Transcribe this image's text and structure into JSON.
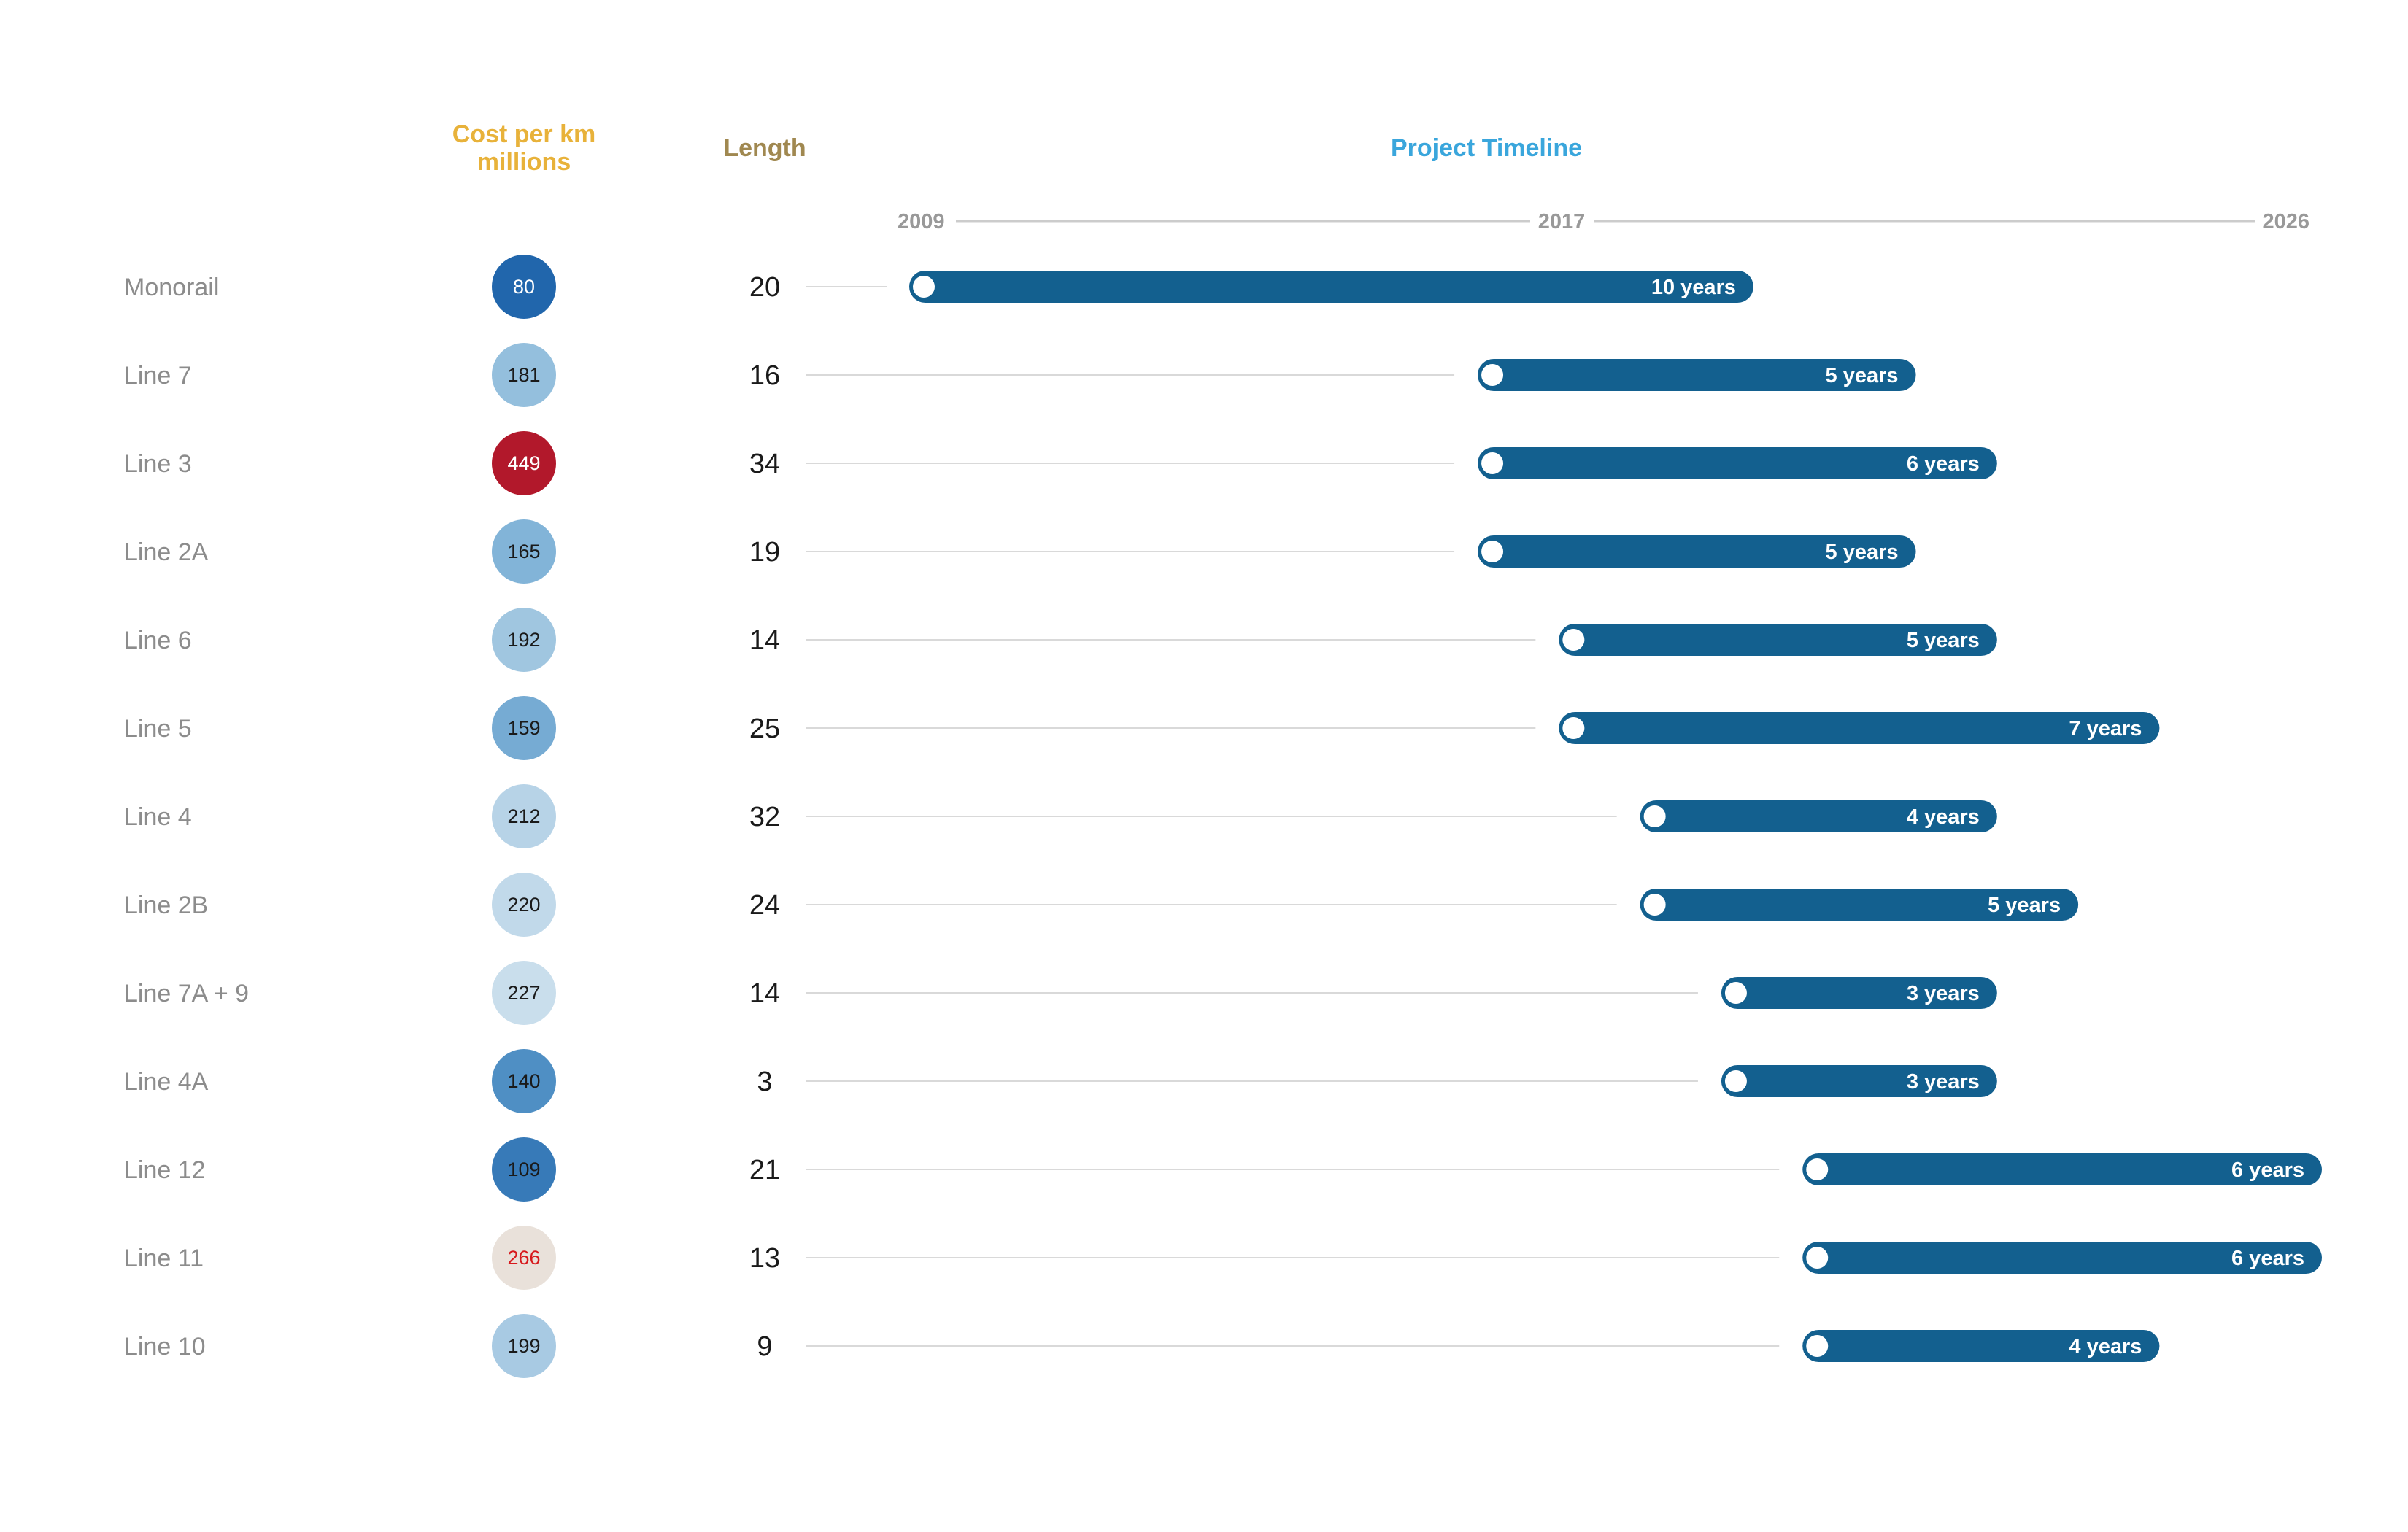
{
  "headers": {
    "cost_line1": "Cost per km",
    "cost_line2": "millions",
    "length": "Length",
    "timeline": "Project Timeline"
  },
  "colors": {
    "cost_header": "#e8b23a",
    "length_header": "#a08850",
    "timeline_header": "#3aa6dc",
    "bar": "#13608f",
    "grid": "#d9d9d9",
    "cost_high": "#b2182b",
    "cost_low": "#2166ac",
    "cost_mid": "#e9e1da"
  },
  "chart_data": {
    "type": "table",
    "columns": [
      "Cost per km millions",
      "Length",
      "Project Timeline"
    ],
    "timeline_axis": {
      "ticks": [
        2009,
        2017,
        2026
      ],
      "range": [
        2009,
        2026
      ]
    },
    "rows": [
      {
        "name": "Monorail",
        "cost": 80,
        "length": 20,
        "start": 2009,
        "years": 10,
        "duration_label": "10 years"
      },
      {
        "name": "Line 7",
        "cost": 181,
        "length": 16,
        "start": 2016,
        "years": 5,
        "duration_label": "5 years"
      },
      {
        "name": "Line 3",
        "cost": 449,
        "length": 34,
        "start": 2016,
        "years": 6,
        "duration_label": "6 years"
      },
      {
        "name": "Line 2A",
        "cost": 165,
        "length": 19,
        "start": 2016,
        "years": 5,
        "duration_label": "5 years"
      },
      {
        "name": "Line 6",
        "cost": 192,
        "length": 14,
        "start": 2017,
        "years": 5,
        "duration_label": "5 years"
      },
      {
        "name": "Line 5",
        "cost": 159,
        "length": 25,
        "start": 2017,
        "years": 7,
        "duration_label": "7 years"
      },
      {
        "name": "Line 4",
        "cost": 212,
        "length": 32,
        "start": 2018,
        "years": 4,
        "duration_label": "4 years"
      },
      {
        "name": "Line 2B",
        "cost": 220,
        "length": 24,
        "start": 2018,
        "years": 5,
        "duration_label": "5 years"
      },
      {
        "name": "Line 7A + 9",
        "cost": 227,
        "length": 14,
        "start": 2019,
        "years": 3,
        "duration_label": "3 years"
      },
      {
        "name": "Line 4A",
        "cost": 140,
        "length": 3,
        "start": 2019,
        "years": 3,
        "duration_label": "3 years"
      },
      {
        "name": "Line 12",
        "cost": 109,
        "length": 21,
        "start": 2020,
        "years": 6,
        "duration_label": "6 years"
      },
      {
        "name": "Line 11",
        "cost": 266,
        "length": 13,
        "start": 2020,
        "years": 6,
        "duration_label": "6 years"
      },
      {
        "name": "Line 10",
        "cost": 199,
        "length": 9,
        "start": 2020,
        "years": 4,
        "duration_label": "4 years"
      }
    ]
  }
}
